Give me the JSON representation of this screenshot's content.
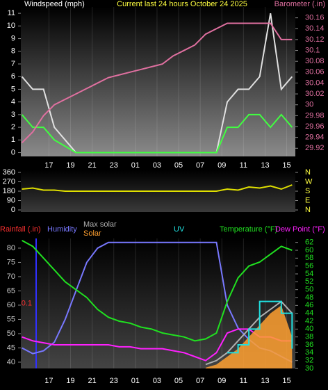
{
  "chart_data": [
    {
      "type": "line",
      "title": "Current last 24 hours October 24 2025",
      "ylabel": "Windspeed (mph)",
      "y2label": "Barometer (.in)",
      "xlim": [
        14.4,
        39.8
      ],
      "xticks": [
        17,
        19,
        21,
        23,
        {
          "value": 25,
          "label": "01"
        },
        {
          "value": 27,
          "label": "03"
        },
        {
          "value": 29,
          "label": "05"
        },
        {
          "value": 31,
          "label": "07"
        },
        {
          "value": 33,
          "label": "09"
        },
        {
          "value": 35,
          "label": "11"
        },
        {
          "value": 37,
          "label": "13"
        },
        {
          "value": 39,
          "label": "15"
        }
      ],
      "ylim": [
        -0.3,
        11.5
      ],
      "yticks": [
        0,
        1,
        2,
        3,
        4,
        5,
        6,
        7,
        8,
        9,
        10,
        11
      ],
      "y2lim": [
        29.905,
        30.18
      ],
      "y2ticks": [
        29.92,
        29.94,
        29.96,
        29.98,
        30,
        30.02,
        30.04,
        30.06,
        30.08,
        30.1,
        30.12,
        30.14,
        30.16
      ],
      "x": [
        14.5,
        15.5,
        16.5,
        17.5,
        18.5,
        19.5,
        20.5,
        21.5,
        22.5,
        23.5,
        24.5,
        25.5,
        26.5,
        27.5,
        28.5,
        29.5,
        30.5,
        31.5,
        32.5,
        33.5,
        34.5,
        35.5,
        36.5,
        37.5,
        38.5,
        39.5
      ],
      "series": [
        {
          "color": "#e0e0e0",
          "values": [
            6,
            5,
            5,
            2,
            1,
            0,
            0,
            0,
            0,
            0,
            0,
            0,
            0,
            0,
            0,
            0,
            0,
            0,
            0,
            4,
            5,
            5,
            6,
            11,
            5,
            6
          ]
        },
        {
          "color": "#40ff40",
          "values": [
            3,
            2,
            2,
            1,
            0.5,
            0,
            0,
            0,
            0,
            0,
            0,
            0,
            0,
            0,
            0,
            0,
            0,
            0,
            0,
            2,
            2,
            3,
            3,
            2,
            3,
            2
          ]
        },
        {
          "color": "#e070a0",
          "axis": "y2",
          "values": [
            29.93,
            29.95,
            29.98,
            30,
            30.01,
            30.02,
            30.03,
            30.04,
            30.05,
            30.055,
            30.06,
            30.065,
            30.07,
            30.075,
            30.09,
            30.1,
            30.11,
            30.13,
            30.14,
            30.15,
            30.15,
            30.15,
            30.15,
            30.15,
            30.12,
            30.12
          ]
        }
      ]
    },
    {
      "type": "line",
      "xlim": [
        14.4,
        39.8
      ],
      "ylim": [
        0,
        360
      ],
      "yticks": [
        360,
        270,
        180,
        90,
        0
      ],
      "y2lim": [
        0,
        360
      ],
      "y2ticks": [
        {
          "value": 360,
          "label": "N"
        },
        {
          "value": 270,
          "label": "W"
        },
        {
          "value": 180,
          "label": "S"
        },
        {
          "value": 90,
          "label": "E"
        },
        {
          "value": 0,
          "label": "N"
        }
      ],
      "x": [
        14.5,
        15.5,
        16.5,
        17.5,
        18.5,
        19.5,
        20.5,
        21.5,
        22.5,
        23.5,
        24.5,
        25.5,
        26.5,
        27.5,
        28.5,
        29.5,
        30.5,
        31.5,
        32.5,
        33.5,
        34.5,
        35.5,
        36.5,
        37.5,
        38.5,
        39.5
      ],
      "series": [
        {
          "color": "#e0e000",
          "values": [
            200,
            210,
            190,
            190,
            180,
            180,
            180,
            180,
            180,
            180,
            180,
            180,
            180,
            180,
            180,
            180,
            180,
            180,
            180,
            200,
            190,
            220,
            210,
            230,
            200,
            240
          ]
        }
      ]
    },
    {
      "type": "line",
      "rain_label": "Rainfall (.in)",
      "rain_lim": [
        0,
        0.2
      ],
      "rain_ticks": [
        0.1
      ],
      "xlim": [
        14.4,
        39.8
      ],
      "xticks": [
        17,
        19,
        21,
        23,
        {
          "value": 25,
          "label": "01"
        },
        {
          "value": 27,
          "label": "03"
        },
        {
          "value": 29,
          "label": "05"
        },
        {
          "value": 31,
          "label": "07"
        },
        {
          "value": 33,
          "label": "09"
        },
        {
          "value": 35,
          "label": "11"
        },
        {
          "value": 37,
          "label": "13"
        },
        {
          "value": 39,
          "label": "15"
        }
      ],
      "ylim": [
        37.8,
        83.4
      ],
      "yticks": [
        40,
        45,
        50,
        55,
        60,
        65,
        70,
        75,
        80
      ],
      "y2lim": [
        30,
        63
      ],
      "y2ticks": [
        30,
        32,
        34,
        36,
        38,
        40,
        42,
        44,
        46,
        48,
        50,
        52,
        54,
        56,
        58,
        60,
        62
      ],
      "x": [
        14.5,
        15.5,
        16.5,
        17.5,
        18.5,
        19.5,
        20.5,
        21.5,
        22.5,
        23.5,
        24.5,
        25.5,
        26.5,
        27.5,
        28.5,
        29.5,
        30.5,
        31.5,
        32.5,
        33.5,
        34.5,
        35.5,
        36.5,
        37.5,
        38.5,
        39.5
      ],
      "series": [
        {
          "name": "Humidity",
          "color": "#7878ff",
          "values": [
            45,
            43,
            44,
            47,
            55,
            65,
            75,
            80,
            82,
            82,
            82,
            82,
            82,
            82,
            82,
            82,
            82,
            82,
            82,
            60,
            52,
            48,
            45,
            44,
            42,
            40
          ]
        },
        {
          "name": "Temperature (°F)",
          "color": "#20e020",
          "axis": "y2",
          "values": [
            62.5,
            61,
            58,
            55,
            52,
            50,
            48,
            45,
            43,
            42,
            41.5,
            40.5,
            40,
            39,
            38.5,
            38,
            37,
            37.5,
            39,
            47,
            53,
            56,
            57,
            59,
            61,
            60
          ]
        },
        {
          "name": "Dew Point (°F)",
          "color": "#ff20ff",
          "axis": "y2",
          "values": [
            38,
            37,
            36.5,
            36,
            36,
            36,
            36,
            36,
            36,
            35.5,
            35.5,
            35,
            35,
            35,
            34.5,
            34,
            33,
            32,
            34,
            39,
            40,
            40,
            38,
            38,
            37,
            37
          ]
        },
        {
          "name": "Max solar",
          "color": "#b0b0b0",
          "axis": "y2",
          "values": [
            null,
            null,
            null,
            null,
            null,
            null,
            null,
            null,
            null,
            null,
            null,
            null,
            null,
            null,
            null,
            null,
            null,
            31,
            32,
            34,
            37,
            40,
            43,
            45,
            47,
            44
          ]
        },
        {
          "name": "Solar",
          "color": "#ffa030",
          "axis": "y2",
          "style": "area",
          "values": [
            null,
            null,
            null,
            null,
            null,
            null,
            null,
            null,
            null,
            null,
            null,
            null,
            null,
            null,
            null,
            null,
            null,
            30.2,
            31,
            33,
            35,
            38,
            41,
            44,
            46,
            38
          ]
        },
        {
          "name": "UV",
          "color": "#20e0e0",
          "axis": "y2",
          "style": "step",
          "values": [
            null,
            null,
            null,
            null,
            null,
            null,
            null,
            null,
            null,
            null,
            null,
            null,
            null,
            null,
            null,
            null,
            null,
            null,
            null,
            34,
            36,
            40,
            47,
            47,
            44,
            35
          ]
        }
      ]
    }
  ]
}
